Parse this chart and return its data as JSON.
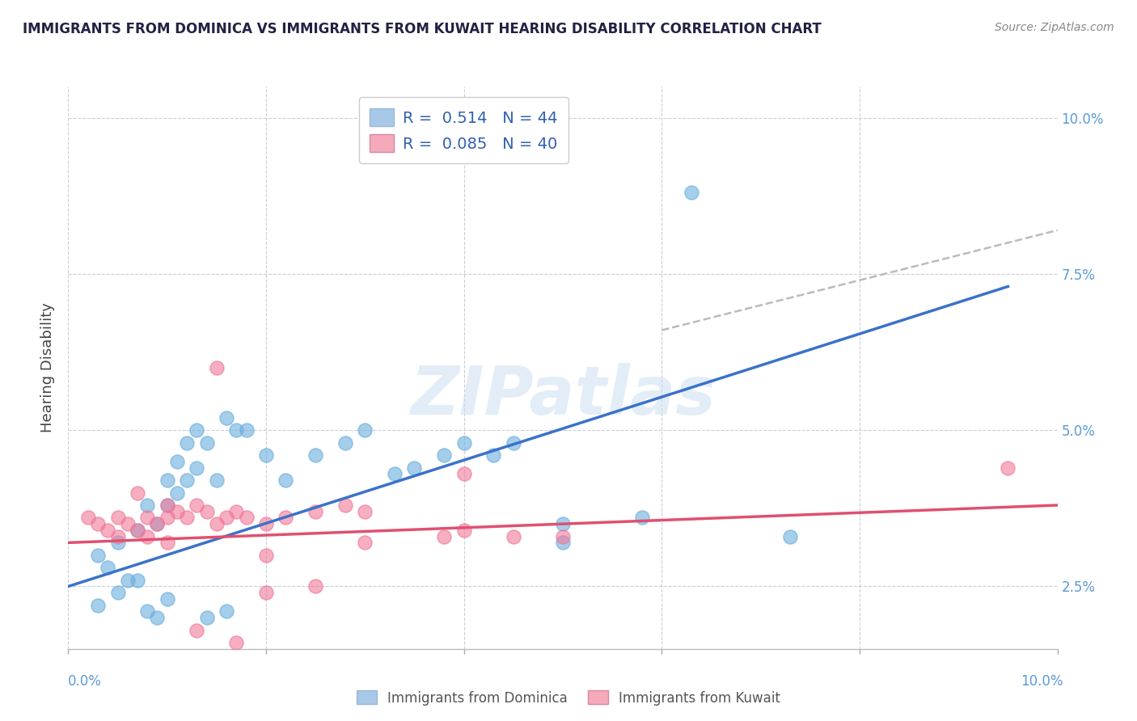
{
  "title": "IMMIGRANTS FROM DOMINICA VS IMMIGRANTS FROM KUWAIT HEARING DISABILITY CORRELATION CHART",
  "source": "Source: ZipAtlas.com",
  "ylabel": "Hearing Disability",
  "watermark": "ZIPatlas",
  "legend1_label": "R =  0.514   N = 44",
  "legend2_label": "R =  0.085   N = 40",
  "legend1_color": "#a8c8e8",
  "legend2_color": "#f4aabb",
  "blue_color": "#6aaede",
  "pink_color": "#f07898",
  "trend_blue_color": "#3a72c8",
  "trend_pink_color": "#e05070",
  "trend_dashed_color": "#bbbbbb",
  "bg_color": "#ffffff",
  "grid_color": "#ccccdd",
  "right_label_color": "#5b9bd5",
  "title_color": "#222244",
  "source_color": "#888888",
  "ylabel_color": "#444444",
  "xmin": 0.0,
  "xmax": 0.1,
  "ymin": 0.015,
  "ymax": 0.105,
  "blue_scatter_x": [
    0.003,
    0.004,
    0.005,
    0.006,
    0.007,
    0.008,
    0.009,
    0.01,
    0.01,
    0.011,
    0.011,
    0.012,
    0.012,
    0.013,
    0.013,
    0.014,
    0.015,
    0.016,
    0.017,
    0.018,
    0.02,
    0.022,
    0.025,
    0.028,
    0.03,
    0.033,
    0.035,
    0.038,
    0.04,
    0.043,
    0.045,
    0.05,
    0.05,
    0.058,
    0.003,
    0.005,
    0.007,
    0.008,
    0.009,
    0.01,
    0.014,
    0.016,
    0.063,
    0.073
  ],
  "blue_scatter_y": [
    0.03,
    0.028,
    0.032,
    0.026,
    0.034,
    0.038,
    0.035,
    0.038,
    0.042,
    0.04,
    0.045,
    0.042,
    0.048,
    0.044,
    0.05,
    0.048,
    0.042,
    0.052,
    0.05,
    0.05,
    0.046,
    0.042,
    0.046,
    0.048,
    0.05,
    0.043,
    0.044,
    0.046,
    0.048,
    0.046,
    0.048,
    0.035,
    0.032,
    0.036,
    0.022,
    0.024,
    0.026,
    0.021,
    0.02,
    0.023,
    0.02,
    0.021,
    0.088,
    0.033
  ],
  "pink_scatter_x": [
    0.002,
    0.003,
    0.004,
    0.005,
    0.005,
    0.006,
    0.007,
    0.007,
    0.008,
    0.009,
    0.01,
    0.01,
    0.011,
    0.012,
    0.013,
    0.014,
    0.015,
    0.016,
    0.017,
    0.018,
    0.02,
    0.022,
    0.025,
    0.028,
    0.03,
    0.015,
    0.008,
    0.01,
    0.02,
    0.03,
    0.038,
    0.04,
    0.045,
    0.05,
    0.04,
    0.02,
    0.025,
    0.013,
    0.017,
    0.095
  ],
  "pink_scatter_y": [
    0.036,
    0.035,
    0.034,
    0.036,
    0.033,
    0.035,
    0.034,
    0.04,
    0.036,
    0.035,
    0.036,
    0.038,
    0.037,
    0.036,
    0.038,
    0.037,
    0.035,
    0.036,
    0.037,
    0.036,
    0.035,
    0.036,
    0.037,
    0.038,
    0.037,
    0.06,
    0.033,
    0.032,
    0.03,
    0.032,
    0.033,
    0.034,
    0.033,
    0.033,
    0.043,
    0.024,
    0.025,
    0.018,
    0.016,
    0.044
  ],
  "blue_trend_x": [
    0.0,
    0.095
  ],
  "blue_trend_y": [
    0.025,
    0.073
  ],
  "pink_trend_x": [
    0.0,
    0.1
  ],
  "pink_trend_y": [
    0.032,
    0.038
  ],
  "dashed_trend_x": [
    0.06,
    0.1
  ],
  "dashed_trend_y": [
    0.066,
    0.082
  ],
  "ytick_values": [
    0.025,
    0.05,
    0.075,
    0.1
  ],
  "ytick_labels": [
    "2.5%",
    "5.0%",
    "7.5%",
    "10.0%"
  ],
  "xtick_values": [
    0.0,
    0.02,
    0.04,
    0.06,
    0.08,
    0.1
  ]
}
